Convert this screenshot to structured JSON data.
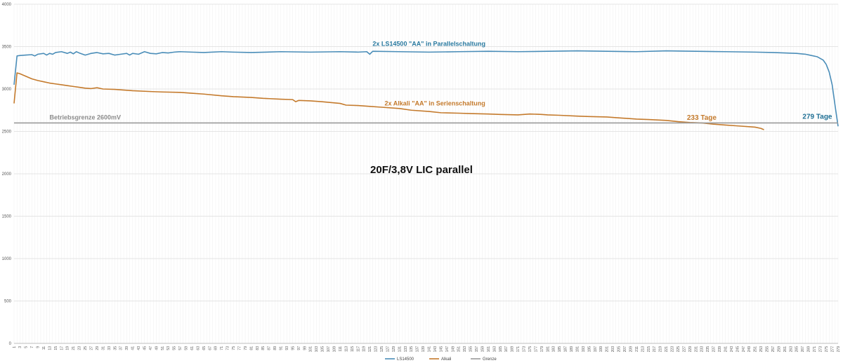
{
  "chart_data": {
    "type": "line",
    "title": "20F/3,8V LIC parallel",
    "xlabel": "",
    "ylabel": "",
    "x_start": 1,
    "x_end": 279,
    "x_tick_step": 2,
    "ylim": [
      0,
      4000
    ],
    "y_ticks": [
      0,
      500,
      1000,
      1500,
      2000,
      2500,
      3000,
      3500,
      4000
    ],
    "grid": true,
    "legend_position": "bottom-center",
    "series": [
      {
        "name": "LS14500",
        "color": "#4a8db8",
        "points": [
          [
            1,
            3050
          ],
          [
            2,
            3390
          ],
          [
            3,
            3395
          ],
          [
            5,
            3400
          ],
          [
            7,
            3405
          ],
          [
            8,
            3390
          ],
          [
            9,
            3410
          ],
          [
            11,
            3420
          ],
          [
            12,
            3400
          ],
          [
            13,
            3420
          ],
          [
            14,
            3410
          ],
          [
            15,
            3430
          ],
          [
            17,
            3440
          ],
          [
            19,
            3420
          ],
          [
            20,
            3435
          ],
          [
            21,
            3415
          ],
          [
            22,
            3440
          ],
          [
            23,
            3425
          ],
          [
            25,
            3400
          ],
          [
            27,
            3420
          ],
          [
            29,
            3430
          ],
          [
            31,
            3415
          ],
          [
            33,
            3420
          ],
          [
            35,
            3400
          ],
          [
            37,
            3410
          ],
          [
            39,
            3420
          ],
          [
            40,
            3400
          ],
          [
            41,
            3420
          ],
          [
            43,
            3410
          ],
          [
            45,
            3440
          ],
          [
            47,
            3420
          ],
          [
            49,
            3415
          ],
          [
            51,
            3430
          ],
          [
            53,
            3425
          ],
          [
            55,
            3435
          ],
          [
            57,
            3440
          ],
          [
            61,
            3435
          ],
          [
            65,
            3430
          ],
          [
            71,
            3440
          ],
          [
            75,
            3435
          ],
          [
            81,
            3430
          ],
          [
            91,
            3440
          ],
          [
            101,
            3435
          ],
          [
            111,
            3440
          ],
          [
            117,
            3435
          ],
          [
            120,
            3440
          ],
          [
            121,
            3410
          ],
          [
            122,
            3445
          ],
          [
            131,
            3440
          ],
          [
            141,
            3435
          ],
          [
            151,
            3440
          ],
          [
            161,
            3445
          ],
          [
            171,
            3440
          ],
          [
            181,
            3445
          ],
          [
            191,
            3450
          ],
          [
            201,
            3445
          ],
          [
            211,
            3440
          ],
          [
            221,
            3450
          ],
          [
            231,
            3445
          ],
          [
            241,
            3440
          ],
          [
            251,
            3435
          ],
          [
            257,
            3430
          ],
          [
            261,
            3425
          ],
          [
            265,
            3420
          ],
          [
            268,
            3410
          ],
          [
            270,
            3395
          ],
          [
            272,
            3380
          ],
          [
            274,
            3340
          ],
          [
            275,
            3290
          ],
          [
            276,
            3200
          ],
          [
            277,
            3050
          ],
          [
            278,
            2800
          ],
          [
            279,
            2560
          ]
        ]
      },
      {
        "name": "Alkali",
        "color": "#c47a2c",
        "points": [
          [
            1,
            2830
          ],
          [
            2,
            3190
          ],
          [
            3,
            3180
          ],
          [
            5,
            3150
          ],
          [
            7,
            3120
          ],
          [
            9,
            3100
          ],
          [
            11,
            3085
          ],
          [
            13,
            3070
          ],
          [
            15,
            3060
          ],
          [
            17,
            3050
          ],
          [
            19,
            3040
          ],
          [
            21,
            3030
          ],
          [
            23,
            3020
          ],
          [
            25,
            3010
          ],
          [
            27,
            3005
          ],
          [
            29,
            3015
          ],
          [
            31,
            3000
          ],
          [
            35,
            2995
          ],
          [
            41,
            2980
          ],
          [
            47,
            2970
          ],
          [
            51,
            2965
          ],
          [
            57,
            2960
          ],
          [
            61,
            2950
          ],
          [
            65,
            2940
          ],
          [
            71,
            2920
          ],
          [
            75,
            2910
          ],
          [
            81,
            2900
          ],
          [
            85,
            2890
          ],
          [
            91,
            2880
          ],
          [
            95,
            2875
          ],
          [
            96,
            2850
          ],
          [
            97,
            2865
          ],
          [
            101,
            2860
          ],
          [
            105,
            2850
          ],
          [
            111,
            2830
          ],
          [
            113,
            2810
          ],
          [
            117,
            2805
          ],
          [
            121,
            2795
          ],
          [
            125,
            2785
          ],
          [
            131,
            2770
          ],
          [
            135,
            2750
          ],
          [
            141,
            2735
          ],
          [
            145,
            2720
          ],
          [
            151,
            2715
          ],
          [
            155,
            2710
          ],
          [
            161,
            2705
          ],
          [
            165,
            2700
          ],
          [
            171,
            2695
          ],
          [
            175,
            2705
          ],
          [
            179,
            2700
          ],
          [
            181,
            2695
          ],
          [
            185,
            2690
          ],
          [
            191,
            2680
          ],
          [
            195,
            2675
          ],
          [
            201,
            2670
          ],
          [
            205,
            2660
          ],
          [
            211,
            2645
          ],
          [
            215,
            2640
          ],
          [
            221,
            2630
          ],
          [
            225,
            2615
          ],
          [
            229,
            2605
          ],
          [
            233,
            2600
          ],
          [
            237,
            2585
          ],
          [
            241,
            2575
          ],
          [
            245,
            2565
          ],
          [
            249,
            2555
          ],
          [
            251,
            2550
          ],
          [
            253,
            2535
          ],
          [
            254,
            2520
          ]
        ]
      },
      {
        "name": "Grenze",
        "color": "#9a9a9a",
        "constant": 2600
      }
    ],
    "annotations": [
      {
        "text": "2x LS14500 \"AA\" in Parallelschaltung",
        "color": "#2a7aa0",
        "x": 141,
        "y": 3510
      },
      {
        "text": "2x Alkali \"AA\" in Serienschaltung",
        "color": "#c47a2c",
        "x": 143,
        "y": 2805
      },
      {
        "text": "Betriebsgrenze 2600mV",
        "color": "#8c8c8c",
        "x": 25,
        "y": 2640
      },
      {
        "text": "233 Tage",
        "color": "#c47a2c",
        "x": 233,
        "y": 2635
      },
      {
        "text": "279 Tage",
        "color": "#1f6f94",
        "x": 272,
        "y": 2650
      }
    ]
  }
}
